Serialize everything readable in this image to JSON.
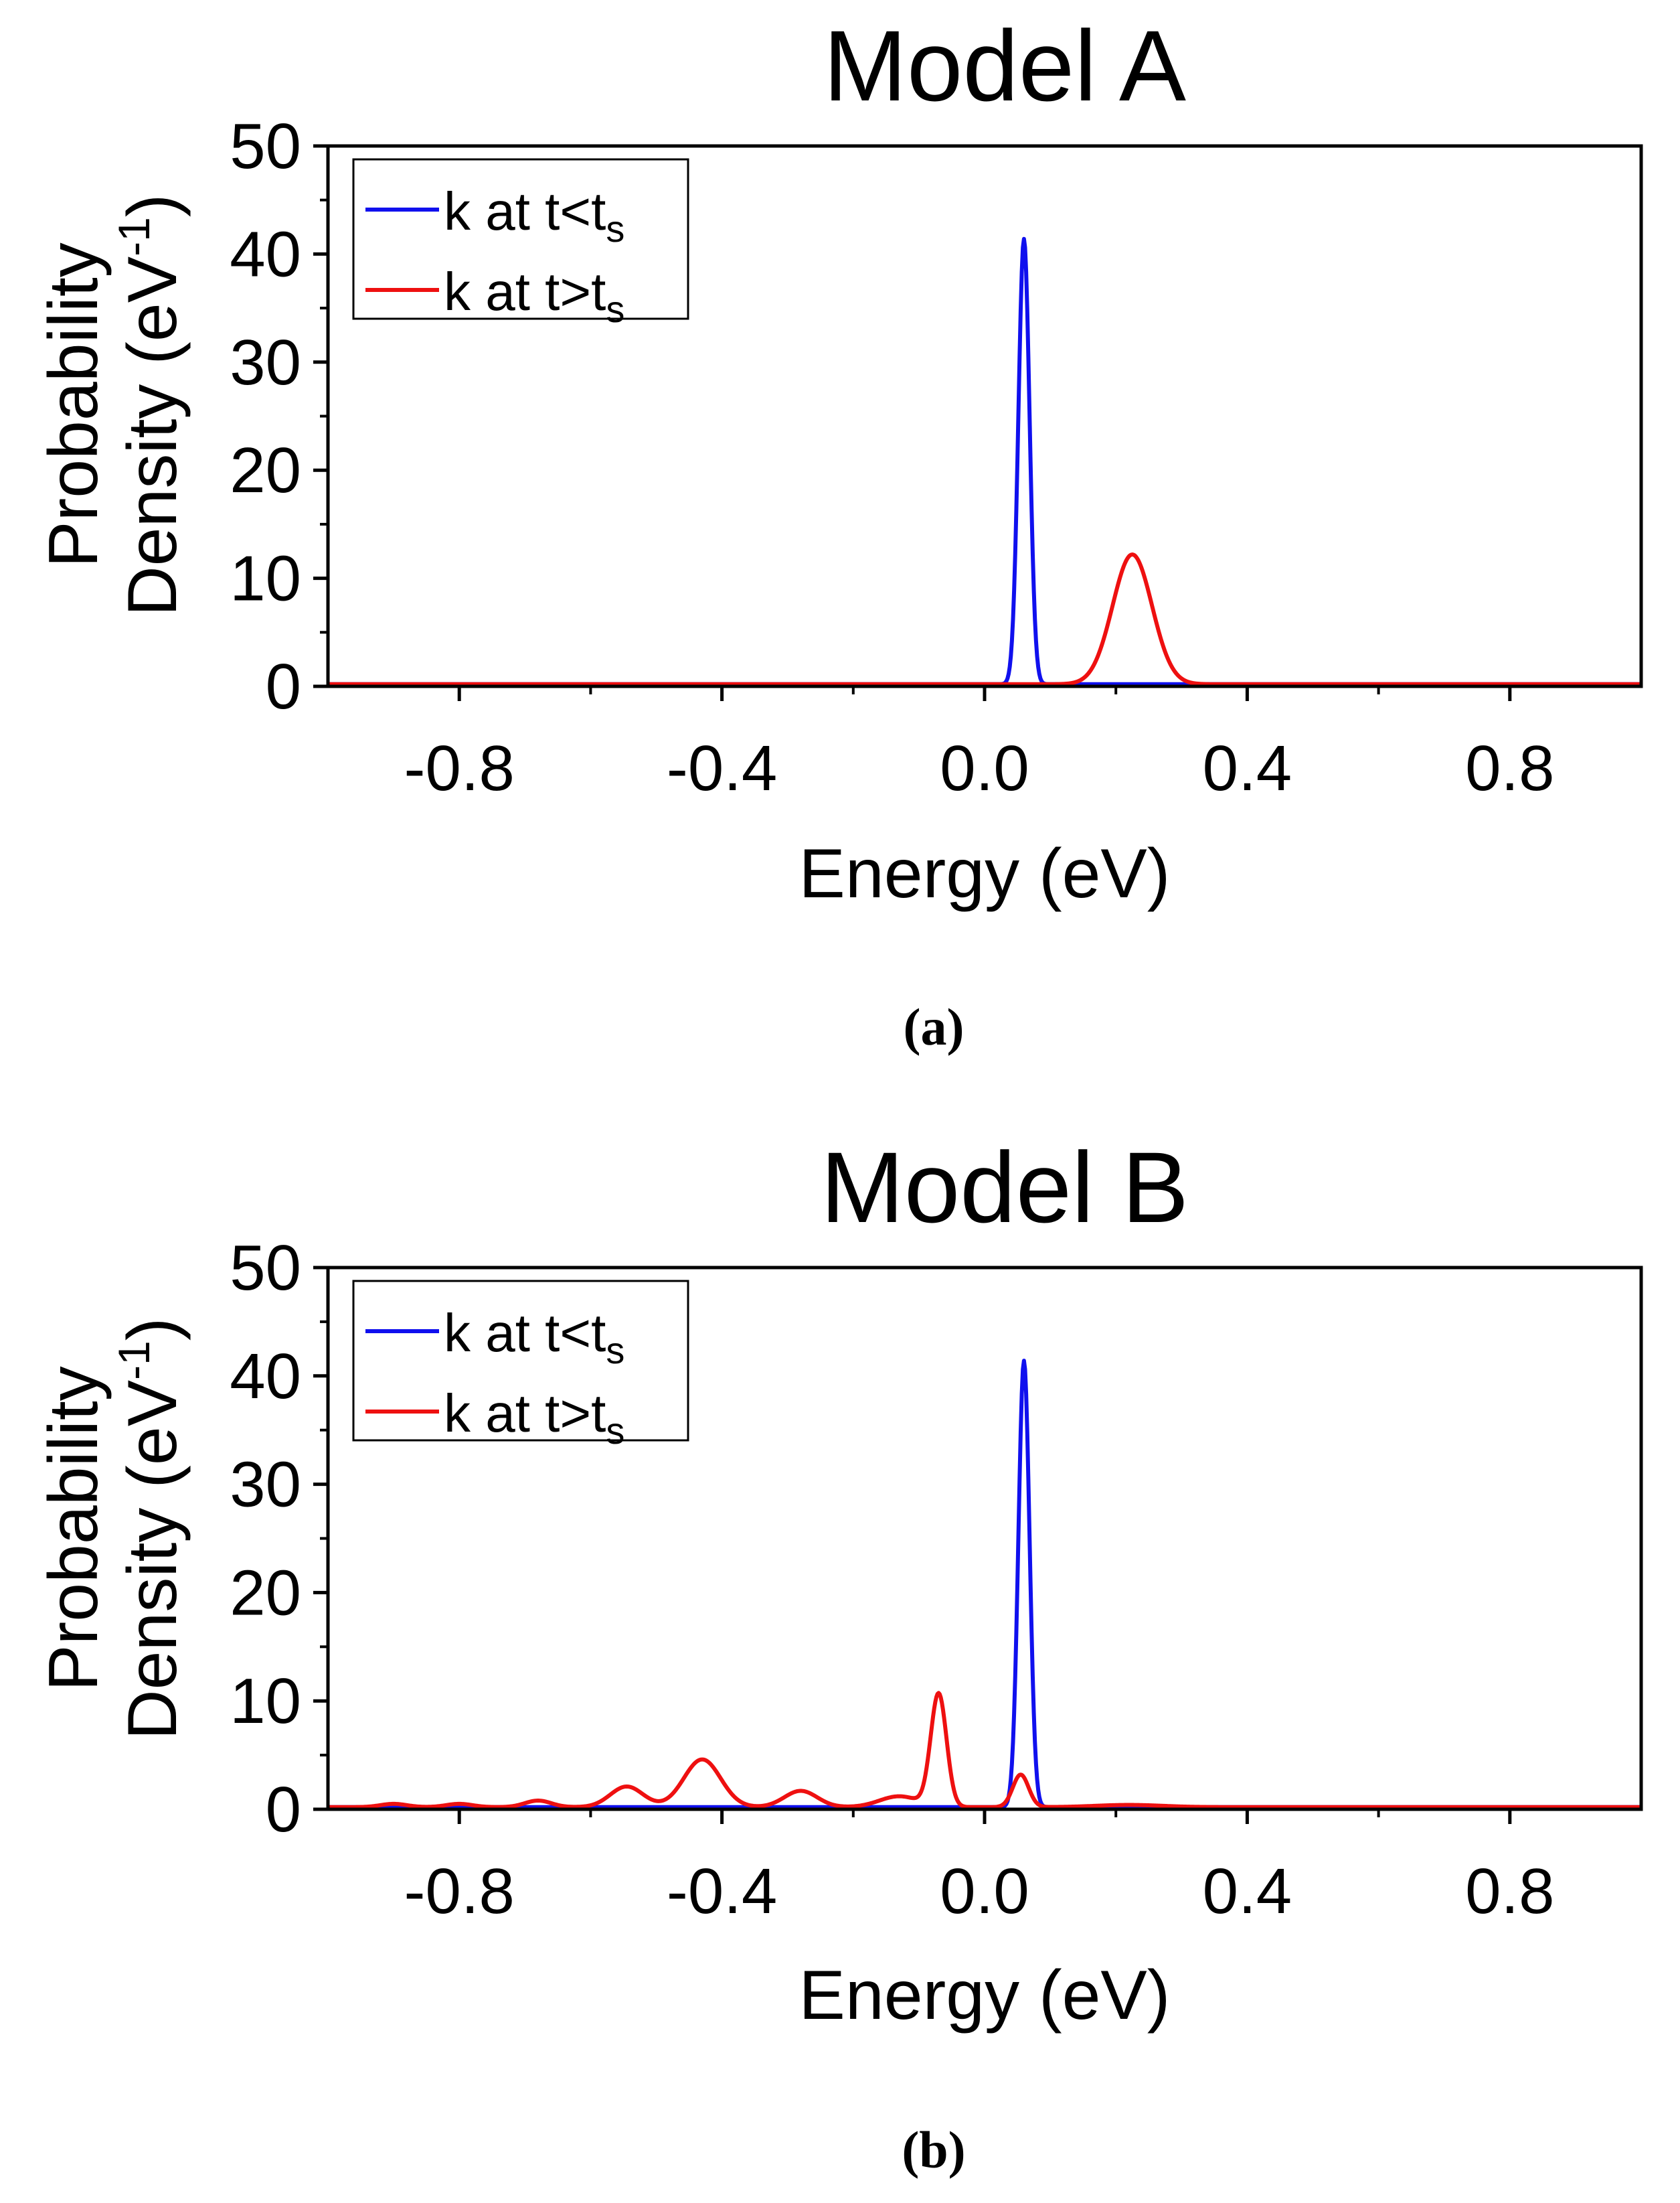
{
  "chart_data": [
    {
      "type": "line",
      "panel_label": "(a)",
      "title": "Model A",
      "xlabel": "Energy (eV)",
      "ylabel_line1": "Probability",
      "ylabel_line2": "Density (eV",
      "ylabel_sup": "-1",
      "ylabel_close": ")",
      "xlim": [
        -1.0,
        1.0
      ],
      "ylim": [
        0,
        50
      ],
      "x_ticks": [
        -0.8,
        -0.4,
        0.0,
        0.4,
        0.8
      ],
      "x_tick_labels": [
        "-0.8",
        "-0.4",
        "0.0",
        "0.4",
        "0.8"
      ],
      "y_ticks": [
        0,
        10,
        20,
        30,
        40,
        50
      ],
      "y_tick_labels": [
        "0",
        "10",
        "20",
        "30",
        "40",
        "50"
      ],
      "legend_position": "top-left",
      "series": [
        {
          "name": "k at t<ts",
          "legend_text": "k at t<t",
          "legend_sub": "s",
          "color": "#1010ee",
          "peaks": [
            {
              "center": 0.06,
              "height": 41.2,
              "sigma": 0.0085
            }
          ],
          "baseline": 0.2
        },
        {
          "name": "k at t>ts",
          "legend_text": "k at t>t",
          "legend_sub": "s",
          "color": "#ee1010",
          "peaks": [
            {
              "center": 0.225,
              "height": 12.0,
              "sigma": 0.03
            }
          ],
          "baseline": 0.2
        }
      ]
    },
    {
      "type": "line",
      "panel_label": "(b)",
      "title": "Model B",
      "xlabel": "Energy (eV)",
      "ylabel_line1": "Probability",
      "ylabel_line2": "Density (eV",
      "ylabel_sup": "-1",
      "ylabel_close": ")",
      "xlim": [
        -1.0,
        1.0
      ],
      "ylim": [
        0,
        50
      ],
      "x_ticks": [
        -0.8,
        -0.4,
        0.0,
        0.4,
        0.8
      ],
      "x_tick_labels": [
        "-0.8",
        "-0.4",
        "0.0",
        "0.4",
        "0.8"
      ],
      "y_ticks": [
        0,
        10,
        20,
        30,
        40,
        50
      ],
      "y_tick_labels": [
        "0",
        "10",
        "20",
        "30",
        "40",
        "50"
      ],
      "legend_position": "top-left",
      "series": [
        {
          "name": "k at t<ts",
          "legend_text": "k at t<t",
          "legend_sub": "s",
          "color": "#1010ee",
          "peaks": [
            {
              "center": 0.06,
              "height": 41.2,
              "sigma": 0.0085
            }
          ],
          "baseline": 0.2
        },
        {
          "name": "k at t>ts",
          "legend_text": "k at t>t",
          "legend_sub": "s",
          "color": "#ee1010",
          "peaks": [
            {
              "center": -0.9,
              "height": 0.3,
              "sigma": 0.02
            },
            {
              "center": -0.8,
              "height": 0.3,
              "sigma": 0.02
            },
            {
              "center": -0.68,
              "height": 0.6,
              "sigma": 0.02
            },
            {
              "center": -0.545,
              "height": 1.9,
              "sigma": 0.025
            },
            {
              "center": -0.43,
              "height": 4.4,
              "sigma": 0.028
            },
            {
              "center": -0.28,
              "height": 1.5,
              "sigma": 0.025
            },
            {
              "center": -0.13,
              "height": 1.0,
              "sigma": 0.03
            },
            {
              "center": -0.07,
              "height": 10.4,
              "sigma": 0.012
            },
            {
              "center": 0.055,
              "height": 3.0,
              "sigma": 0.012
            },
            {
              "center": 0.22,
              "height": 0.2,
              "sigma": 0.05
            }
          ],
          "baseline": 0.2
        }
      ]
    }
  ]
}
